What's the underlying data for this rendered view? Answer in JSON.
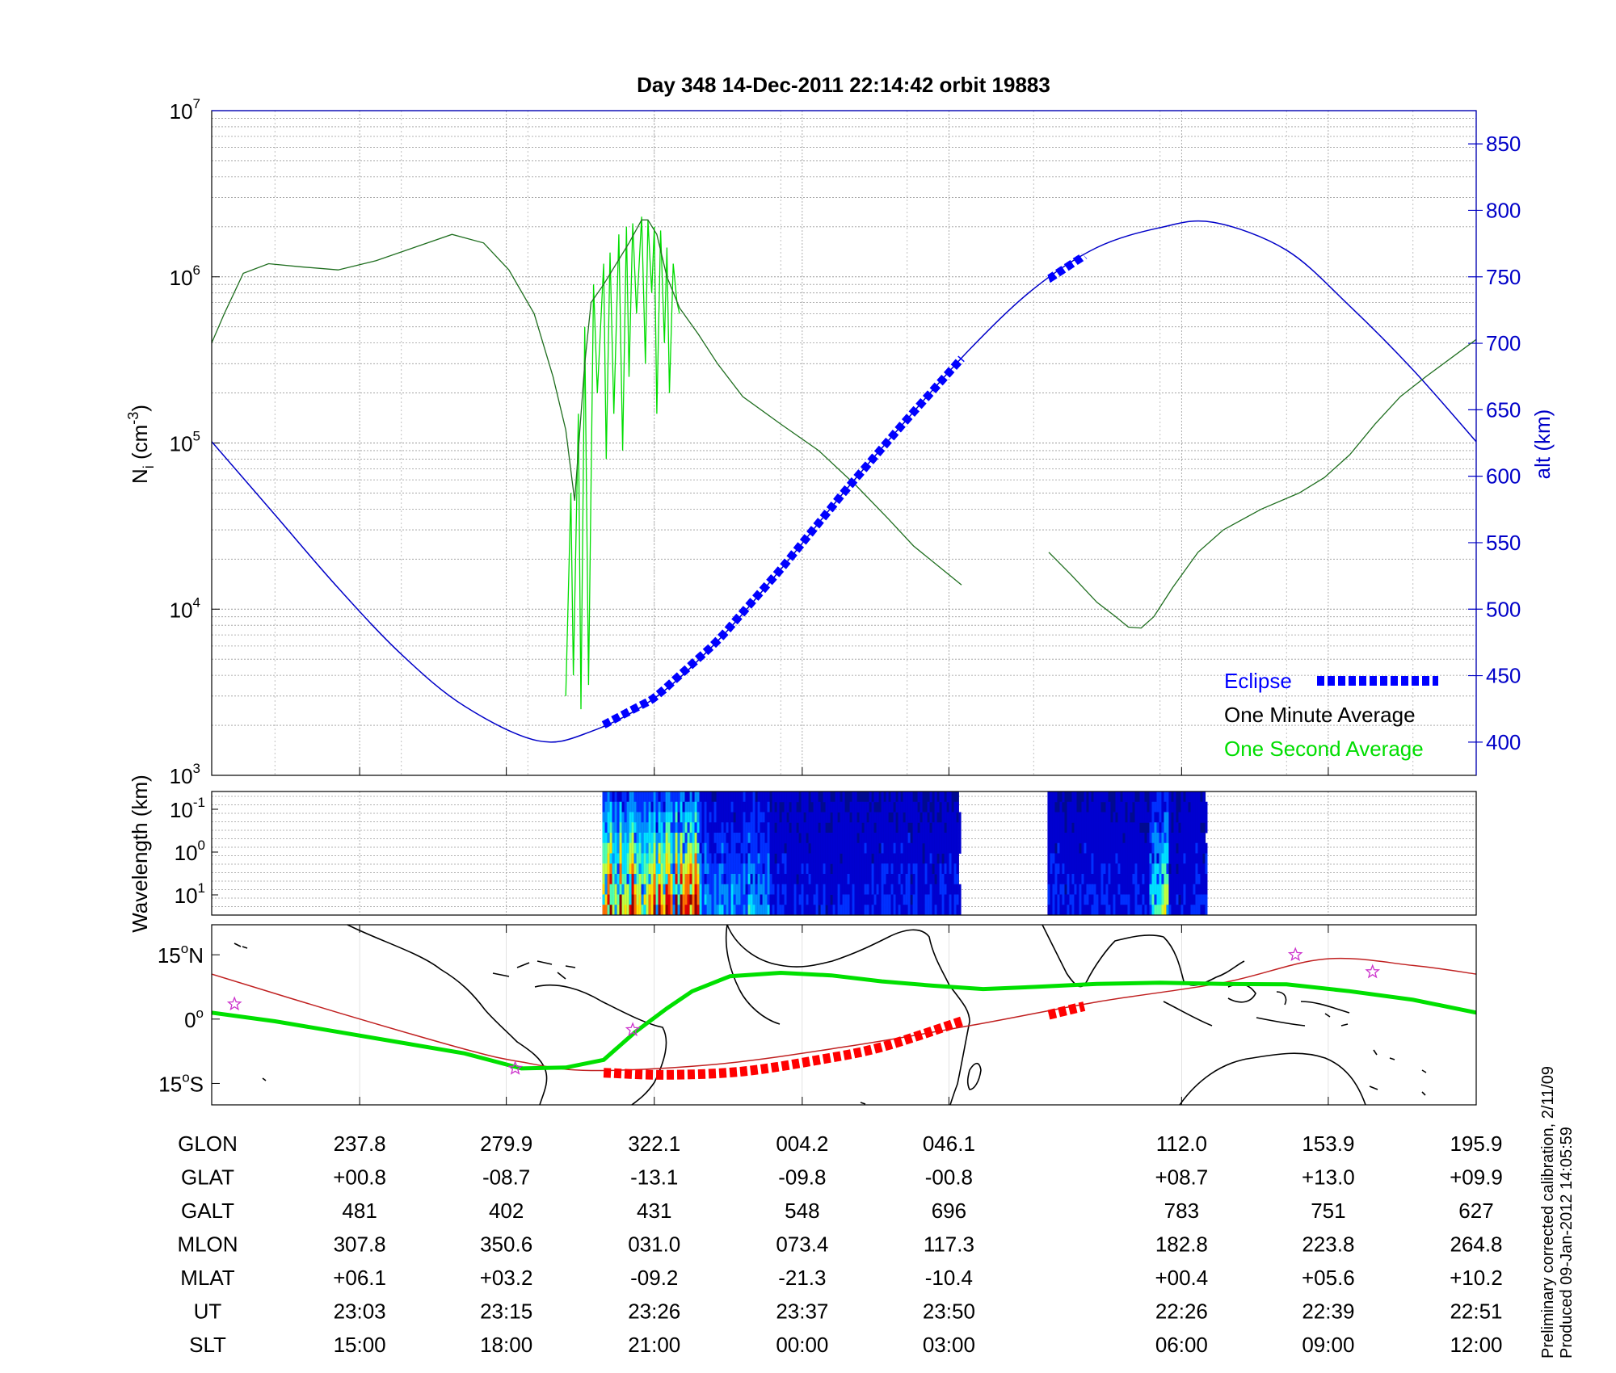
{
  "title": "Day 348  14-Dec-2011 22:14:42   orbit 19883",
  "footnote": {
    "line1": "Preliminary corrected calibration, 2/11/09",
    "line2": "Produced 09-Jan-2012 14:05:59"
  },
  "colors": {
    "minute_avg": "#000000",
    "second_avg": "#00dd00",
    "altitude": "#0000c8",
    "eclipse": "#0000ff",
    "trace_green": "#00e000",
    "trace_red": "#ff0000",
    "star": "#cc33cc"
  },
  "chart_data": [
    {
      "type": "line",
      "panel": "density",
      "title": "Day 348  14-Dec-2011 22:14:42   orbit 19883",
      "ylabel": "N_i (cm^-3)",
      "ylabel_main": "N",
      "ylabel_sub": "i",
      "ylabel_unit": " (cm",
      "ylabel_exp": "-3",
      "ylabel_close": ")",
      "yscale": "log",
      "ylim": [
        1000,
        10000000
      ],
      "yticks": [
        {
          "base": "10",
          "exp": "3"
        },
        {
          "base": "10",
          "exp": "4"
        },
        {
          "base": "10",
          "exp": "5"
        },
        {
          "base": "10",
          "exp": "6"
        },
        {
          "base": "10",
          "exp": "7"
        }
      ],
      "y2label": "alt (km)",
      "y2lim": [
        375,
        875
      ],
      "y2ticks": [
        "400",
        "450",
        "500",
        "550",
        "600",
        "650",
        "700",
        "750",
        "800",
        "850"
      ],
      "grid": true,
      "legend_position": "bottom-right",
      "legend": [
        {
          "name": "Eclipse",
          "color": "#0000ff"
        },
        {
          "name": "One Minute Average",
          "color": "#000000"
        },
        {
          "name": "One Second Average",
          "color": "#00dd00"
        }
      ],
      "series": [
        {
          "name": "One Minute Average",
          "x": [
            0,
            0.01,
            0.025,
            0.045,
            0.07,
            0.1,
            0.13,
            0.16,
            0.19,
            0.215,
            0.235,
            0.255,
            0.27,
            0.28,
            0.287,
            0.295,
            0.3,
            0.31,
            0.32,
            0.33,
            0.34,
            0.345,
            0.352,
            0.36,
            0.37,
            0.385,
            0.4,
            0.42,
            0.45,
            0.48,
            0.51,
            0.535,
            0.555,
            0.593
          ],
          "y": [
            400000,
            600000,
            1050000,
            1200000,
            1150000,
            1100000,
            1250000,
            1500000,
            1800000,
            1600000,
            1100000,
            600000,
            250000,
            120000,
            45000,
            300000,
            700000,
            900000,
            1200000,
            1600000,
            2200000,
            2200000,
            1800000,
            1000000,
            650000,
            450000,
            300000,
            190000,
            130000,
            90000,
            55000,
            35000,
            24000,
            14000
          ]
        },
        {
          "name": "One Minute Average (2)",
          "x": [
            0.662,
            0.68,
            0.7,
            0.715,
            0.725,
            0.735,
            0.745,
            0.76,
            0.78,
            0.8,
            0.83,
            0.86,
            0.88,
            0.9,
            0.92,
            0.94,
            0.96,
            1.0
          ],
          "y": [
            22000,
            16000,
            11000,
            9000,
            7800,
            7700,
            9000,
            13500,
            22000,
            30000,
            40000,
            50000,
            62000,
            85000,
            130000,
            190000,
            250000,
            420000
          ]
        },
        {
          "name": "One Second Average",
          "x": [
            0.28,
            0.284,
            0.286,
            0.29,
            0.292,
            0.295,
            0.298,
            0.302,
            0.305,
            0.31,
            0.312,
            0.315,
            0.318,
            0.322,
            0.325,
            0.328,
            0.33,
            0.333,
            0.336,
            0.34,
            0.343,
            0.345,
            0.348,
            0.35,
            0.352,
            0.355,
            0.358,
            0.36,
            0.362,
            0.365,
            0.368,
            0.37
          ],
          "y": [
            3000,
            50000,
            4000,
            150000,
            2500,
            500000,
            3500,
            900000,
            200000,
            1200000,
            80000,
            1400000,
            150000,
            1800000,
            90000,
            2000000,
            250000,
            2100000,
            600000,
            2300000,
            300000,
            2200000,
            800000,
            2000000,
            150000,
            1900000,
            400000,
            1500000,
            200000,
            1200000,
            700000,
            600000
          ]
        },
        {
          "name": "altitude",
          "axis": "right",
          "x": [
            0,
            0.05,
            0.1,
            0.15,
            0.2,
            0.258,
            0.3,
            0.35,
            0.4,
            0.45,
            0.5,
            0.55,
            0.6,
            0.65,
            0.7,
            0.75,
            0.792,
            0.85,
            0.9,
            0.95,
            1.0
          ],
          "y": [
            626,
            571,
            516,
            466,
            427,
            401,
            408,
            433,
            476,
            530,
            588,
            643,
            696,
            741,
            772,
            787,
            791,
            770,
            728,
            680,
            626
          ]
        }
      ],
      "eclipse_segments": [
        {
          "x": [
            0.31,
            0.593
          ]
        },
        {
          "x": [
            0.662,
            0.69
          ]
        }
      ]
    },
    {
      "type": "heatmap",
      "panel": "wavelength",
      "ylabel": "Wavelength (km)",
      "yticks": [
        {
          "base": "10",
          "exp": "-1"
        },
        {
          "base": "10",
          "exp": "0"
        },
        {
          "base": "10",
          "exp": "1"
        }
      ],
      "data_segments": [
        {
          "x": [
            0.309,
            0.591
          ]
        },
        {
          "x": [
            0.661,
            0.786
          ]
        }
      ],
      "colormap": "jet"
    },
    {
      "type": "line",
      "panel": "map",
      "ylim": [
        -20,
        22
      ],
      "yticks": [
        {
          "label": "15",
          "unit": "N"
        },
        {
          "label": "0",
          "unit": ""
        },
        {
          "label": "15",
          "unit": "S"
        }
      ],
      "series": [
        {
          "name": "green-track",
          "x": [
            0,
            0.05,
            0.1,
            0.15,
            0.2,
            0.245,
            0.28,
            0.31,
            0.335,
            0.36,
            0.38,
            0.41,
            0.45,
            0.49,
            0.53,
            0.57,
            0.61,
            0.65,
            0.7,
            0.75,
            0.8,
            0.85,
            0.9,
            0.95,
            1.0
          ],
          "y": [
            1.5,
            -0.5,
            -3,
            -5.5,
            -8,
            -11.5,
            -11.3,
            -9.5,
            -3,
            2.5,
            6.5,
            10,
            10.8,
            10.2,
            8.8,
            7.8,
            7,
            7.5,
            8.2,
            8.5,
            8.2,
            8.1,
            6.5,
            4.5,
            1.5
          ]
        },
        {
          "name": "red-track",
          "x": [
            0,
            0.1,
            0.2,
            0.245,
            0.3,
            0.4,
            0.5,
            0.6,
            0.7,
            0.8,
            0.88,
            0.95,
            1.0
          ],
          "y": [
            10.5,
            1.5,
            -7,
            -10,
            -12,
            -10.5,
            -6.5,
            -1.5,
            4,
            8.5,
            14,
            12.5,
            10.5
          ]
        },
        {
          "name": "red-eclipse-1",
          "x": [
            0.31,
            0.36,
            0.42,
            0.48,
            0.53,
            0.593
          ],
          "y": [
            -12.5,
            -13,
            -12.2,
            -9.5,
            -6.5,
            -0.5
          ]
        },
        {
          "name": "red-eclipse-2",
          "x": [
            0.662,
            0.69
          ],
          "y": [
            1,
            3
          ]
        }
      ],
      "stars": [
        {
          "x": 0.018,
          "y": 3.5
        },
        {
          "x": 0.24,
          "y": -11.5
        },
        {
          "x": 0.333,
          "y": -2.5
        },
        {
          "x": 0.857,
          "y": 15
        },
        {
          "x": 0.918,
          "y": 11
        }
      ]
    },
    {
      "type": "table",
      "panel": "ephemeris",
      "row_labels": [
        "GLON",
        "GLAT",
        "GALT",
        "MLON",
        "MLAT",
        "UT",
        "SLT"
      ],
      "columns": [
        {
          "x": 0.117,
          "values": [
            "237.8",
            "+00.8",
            "481",
            "307.8",
            "+06.1",
            "23:03",
            "15:00"
          ]
        },
        {
          "x": 0.233,
          "values": [
            "279.9",
            "-08.7",
            "402",
            "350.6",
            "+03.2",
            "23:15",
            "18:00"
          ]
        },
        {
          "x": 0.35,
          "values": [
            "322.1",
            "-13.1",
            "431",
            "031.0",
            "-09.2",
            "23:26",
            "21:00"
          ]
        },
        {
          "x": 0.467,
          "values": [
            "004.2",
            "-09.8",
            "548",
            "073.4",
            "-21.3",
            "23:37",
            "00:00"
          ]
        },
        {
          "x": 0.583,
          "values": [
            "046.1",
            "-00.8",
            "696",
            "117.3",
            "-10.4",
            "23:50",
            "03:00"
          ]
        },
        {
          "x": 0.767,
          "values": [
            "112.0",
            "+08.7",
            "783",
            "182.8",
            "+00.4",
            "22:26",
            "06:00"
          ]
        },
        {
          "x": 0.883,
          "values": [
            "153.9",
            "+13.0",
            "751",
            "223.8",
            "+05.6",
            "22:39",
            "09:00"
          ]
        },
        {
          "x": 1.0,
          "values": [
            "195.9",
            "+09.9",
            "627",
            "264.8",
            "+10.2",
            "22:51",
            "12:00"
          ]
        }
      ]
    }
  ]
}
